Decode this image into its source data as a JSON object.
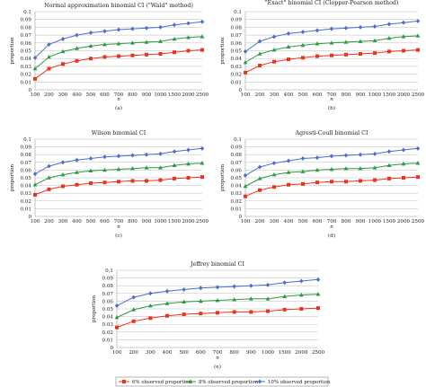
{
  "colors": {
    "red": "#e8341c",
    "green": "#2c9a40",
    "blue": "#4a6fc8"
  },
  "legend": {
    "items": [
      {
        "label": "6% observed proportion",
        "color": "#e8341c",
        "marker": "square"
      },
      {
        "label": "8% observed proportion",
        "color": "#2c9a40",
        "marker": "triangle"
      },
      {
        "label": "10% observed proportion",
        "color": "#4a6fc8",
        "marker": "diamond"
      }
    ]
  },
  "chart_data": [
    {
      "type": "line",
      "title": "Normal approximation binomial CI (\"Wald\" method)",
      "panel_label": "(a)",
      "xlabel": "n",
      "ylabel": "proportion",
      "categories": [
        "100",
        "200",
        "300",
        "400",
        "500",
        "600",
        "700",
        "800",
        "900",
        "1000",
        "1500",
        "2000",
        "2500"
      ],
      "yticks": [
        "0",
        "0.01",
        "0.02",
        "0.03",
        "0.04",
        "0.05",
        "0.06",
        "0.07",
        "0.08",
        "0.09",
        "0.1"
      ],
      "ylim": [
        0,
        0.1
      ],
      "grid": true,
      "series": [
        {
          "color": "#e8341c",
          "marker": "square",
          "values": [
            0.014,
            0.027,
            0.033,
            0.037,
            0.04,
            0.042,
            0.043,
            0.044,
            0.045,
            0.046,
            0.048,
            0.05,
            0.051
          ]
        },
        {
          "color": "#2c9a40",
          "marker": "triangle",
          "values": [
            0.027,
            0.042,
            0.049,
            0.053,
            0.056,
            0.058,
            0.059,
            0.06,
            0.061,
            0.062,
            0.065,
            0.067,
            0.068
          ]
        },
        {
          "color": "#4a6fc8",
          "marker": "diamond",
          "values": [
            0.041,
            0.058,
            0.065,
            0.07,
            0.073,
            0.075,
            0.077,
            0.078,
            0.079,
            0.08,
            0.083,
            0.085,
            0.087
          ]
        }
      ]
    },
    {
      "type": "line",
      "title": "\"Exact\" binomial CI (Clopper-Pearson method)",
      "panel_label": "(b)",
      "xlabel": "n",
      "ylabel": "proportion",
      "categories": [
        "100",
        "200",
        "300",
        "400",
        "500",
        "600",
        "700",
        "800",
        "900",
        "1000",
        "1500",
        "2000",
        "2500"
      ],
      "yticks": [
        "0",
        "0.01",
        "0.02",
        "0.03",
        "0.04",
        "0.05",
        "0.06",
        "0.07",
        "0.08",
        "0.09",
        "0.1"
      ],
      "ylim": [
        0,
        0.1
      ],
      "grid": true,
      "series": [
        {
          "color": "#e8341c",
          "marker": "square",
          "values": [
            0.022,
            0.031,
            0.036,
            0.039,
            0.041,
            0.043,
            0.044,
            0.045,
            0.046,
            0.047,
            0.049,
            0.05,
            0.051
          ]
        },
        {
          "color": "#2c9a40",
          "marker": "triangle",
          "values": [
            0.035,
            0.046,
            0.051,
            0.055,
            0.057,
            0.059,
            0.06,
            0.061,
            0.062,
            0.063,
            0.066,
            0.068,
            0.069
          ]
        },
        {
          "color": "#4a6fc8",
          "marker": "diamond",
          "values": [
            0.049,
            0.062,
            0.068,
            0.072,
            0.074,
            0.076,
            0.078,
            0.079,
            0.08,
            0.081,
            0.084,
            0.086,
            0.088
          ]
        }
      ]
    },
    {
      "type": "line",
      "title": "Wilson binomial CI",
      "panel_label": "(c)",
      "xlabel": "n",
      "ylabel": "proportion",
      "categories": [
        "100",
        "200",
        "300",
        "400",
        "500",
        "600",
        "700",
        "800",
        "900",
        "1000",
        "1500",
        "2000",
        "2500"
      ],
      "yticks": [
        "0",
        "0.01",
        "0.02",
        "0.03",
        "0.04",
        "0.05",
        "0.06",
        "0.07",
        "0.08",
        "0.09",
        "0.1"
      ],
      "ylim": [
        0,
        0.1
      ],
      "grid": true,
      "series": [
        {
          "color": "#e8341c",
          "marker": "square",
          "values": [
            0.028,
            0.035,
            0.039,
            0.041,
            0.043,
            0.044,
            0.045,
            0.046,
            0.046,
            0.047,
            0.049,
            0.05,
            0.051
          ]
        },
        {
          "color": "#2c9a40",
          "marker": "triangle",
          "values": [
            0.041,
            0.05,
            0.054,
            0.057,
            0.059,
            0.06,
            0.061,
            0.062,
            0.063,
            0.063,
            0.066,
            0.068,
            0.069
          ]
        },
        {
          "color": "#4a6fc8",
          "marker": "diamond",
          "values": [
            0.055,
            0.065,
            0.07,
            0.073,
            0.075,
            0.077,
            0.078,
            0.079,
            0.08,
            0.081,
            0.084,
            0.086,
            0.088
          ]
        }
      ]
    },
    {
      "type": "line",
      "title": "Agresti-Coull binomial CI",
      "panel_label": "(d)",
      "xlabel": "n",
      "ylabel": "proportion",
      "categories": [
        "100",
        "200",
        "300",
        "400",
        "500",
        "600",
        "700",
        "800",
        "900",
        "1000",
        "1500",
        "2000",
        "2500"
      ],
      "yticks": [
        "0",
        "0.01",
        "0.02",
        "0.03",
        "0.04",
        "0.05",
        "0.06",
        "0.07",
        "0.08",
        "0.09",
        "0.1"
      ],
      "ylim": [
        0,
        0.1
      ],
      "grid": true,
      "series": [
        {
          "color": "#e8341c",
          "marker": "square",
          "values": [
            0.026,
            0.034,
            0.038,
            0.041,
            0.042,
            0.044,
            0.045,
            0.045,
            0.046,
            0.047,
            0.049,
            0.05,
            0.051
          ]
        },
        {
          "color": "#2c9a40",
          "marker": "triangle",
          "values": [
            0.039,
            0.049,
            0.054,
            0.057,
            0.058,
            0.06,
            0.061,
            0.062,
            0.062,
            0.063,
            0.066,
            0.068,
            0.069
          ]
        },
        {
          "color": "#4a6fc8",
          "marker": "diamond",
          "values": [
            0.053,
            0.064,
            0.069,
            0.072,
            0.075,
            0.076,
            0.078,
            0.079,
            0.08,
            0.081,
            0.084,
            0.086,
            0.088
          ]
        }
      ]
    },
    {
      "type": "line",
      "title": "Jeffrey binomial CI",
      "panel_label": "(e)",
      "xlabel": "n",
      "ylabel": "proportion",
      "categories": [
        "100",
        "200",
        "300",
        "400",
        "500",
        "600",
        "700",
        "800",
        "900",
        "1000",
        "1500",
        "2000",
        "2500"
      ],
      "yticks": [
        "0",
        "0.01",
        "0.02",
        "0.03",
        "0.04",
        "0.05",
        "0.06",
        "0.07",
        "0.08",
        "0.09",
        "0.1"
      ],
      "ylim": [
        0,
        0.1
      ],
      "grid": true,
      "series": [
        {
          "color": "#e8341c",
          "marker": "square",
          "values": [
            0.026,
            0.034,
            0.038,
            0.041,
            0.043,
            0.044,
            0.045,
            0.046,
            0.046,
            0.047,
            0.049,
            0.05,
            0.051
          ]
        },
        {
          "color": "#2c9a40",
          "marker": "triangle",
          "values": [
            0.039,
            0.049,
            0.054,
            0.057,
            0.059,
            0.06,
            0.061,
            0.062,
            0.063,
            0.063,
            0.066,
            0.068,
            0.069
          ]
        },
        {
          "color": "#4a6fc8",
          "marker": "diamond",
          "values": [
            0.054,
            0.065,
            0.07,
            0.073,
            0.075,
            0.077,
            0.078,
            0.079,
            0.08,
            0.081,
            0.084,
            0.086,
            0.088
          ]
        }
      ]
    }
  ]
}
